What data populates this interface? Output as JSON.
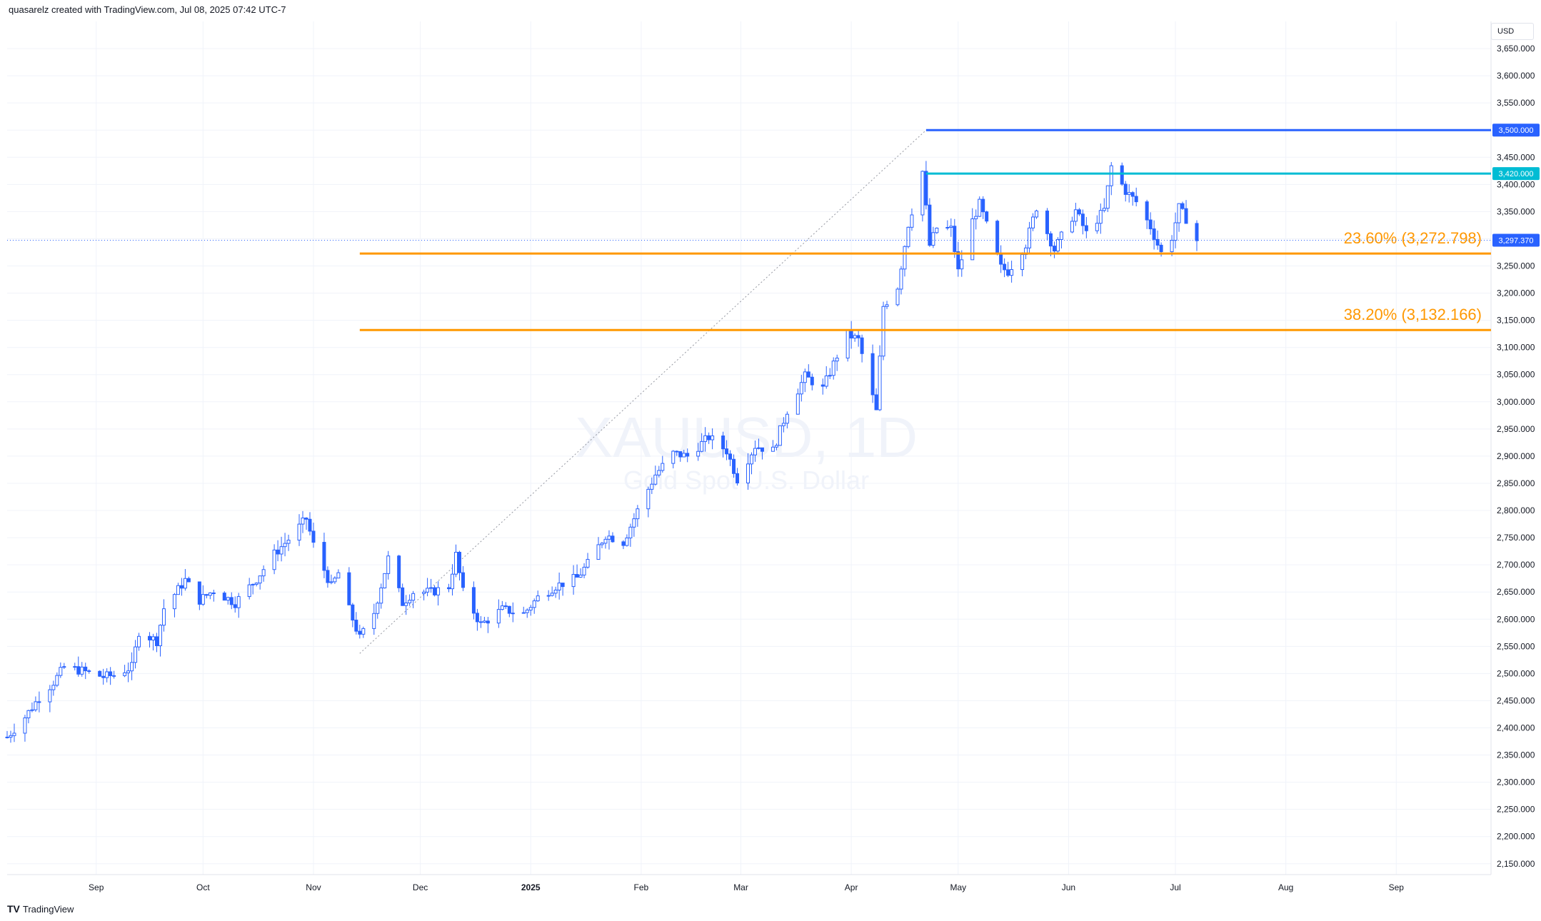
{
  "header": {
    "text": "quasarelz created with TradingView.com, Jul 08, 2025 07:42 UTC-7"
  },
  "footer": {
    "brand": "TradingView",
    "logo_glyph": "TV"
  },
  "currency": "USD",
  "watermark": {
    "symbol": "XAUUSD, 1D",
    "description": "Gold Spot U.S. Dollar"
  },
  "colors": {
    "up": "#2962ff",
    "down": "#2962ff",
    "up_fill": "#ffffff",
    "resistance": "#2962ff",
    "support_cyan": "#00bcd4",
    "fib": "#ff9800",
    "grid": "#f0f3fa",
    "text": "#131722"
  },
  "chart_data": {
    "type": "candlestick",
    "symbol": "XAUUSD",
    "interval": "1D",
    "ylim": [
      2130,
      3700
    ],
    "y_ticks": [
      2150,
      2200,
      2250,
      2300,
      2350,
      2400,
      2450,
      2500,
      2550,
      2600,
      2650,
      2700,
      2750,
      2800,
      2850,
      2900,
      2950,
      3000,
      3050,
      3100,
      3150,
      3200,
      3250,
      3300,
      3350,
      3400,
      3450,
      3500,
      3550,
      3600,
      3650
    ],
    "x_ticks": [
      {
        "label": "Sep",
        "x": "2024-09-01"
      },
      {
        "label": "Oct",
        "x": "2024-10-01"
      },
      {
        "label": "Nov",
        "x": "2024-11-01"
      },
      {
        "label": "Dec",
        "x": "2024-12-01"
      },
      {
        "label": "2025",
        "x": "2025-01-01",
        "bold": true
      },
      {
        "label": "Feb",
        "x": "2025-02-01"
      },
      {
        "label": "Mar",
        "x": "2025-03-01"
      },
      {
        "label": "Apr",
        "x": "2025-04-01"
      },
      {
        "label": "May",
        "x": "2025-05-01"
      },
      {
        "label": "Jun",
        "x": "2025-06-01"
      },
      {
        "label": "Jul",
        "x": "2025-07-01"
      },
      {
        "label": "Aug",
        "x": "2025-08-01"
      },
      {
        "label": "Sep",
        "x": "2025-09-01"
      }
    ],
    "x_range": [
      "2024-08-07",
      "2025-09-27"
    ],
    "close_path": [
      [
        "2024-08-07",
        2383
      ],
      [
        "2024-08-12",
        2420
      ],
      [
        "2024-08-16",
        2456
      ],
      [
        "2024-08-20",
        2484
      ],
      [
        "2024-08-23",
        2512
      ],
      [
        "2024-08-28",
        2505
      ],
      [
        "2024-09-03",
        2494
      ],
      [
        "2024-09-06",
        2497
      ],
      [
        "2024-09-11",
        2512
      ],
      [
        "2024-09-13",
        2577
      ],
      [
        "2024-09-18",
        2560
      ],
      [
        "2024-09-20",
        2620
      ],
      [
        "2024-09-26",
        2672
      ],
      [
        "2024-09-30",
        2635
      ],
      [
        "2024-10-04",
        2653
      ],
      [
        "2024-10-10",
        2630
      ],
      [
        "2024-10-16",
        2674
      ],
      [
        "2024-10-21",
        2720
      ],
      [
        "2024-10-25",
        2747
      ],
      [
        "2024-10-30",
        2785
      ],
      [
        "2024-11-01",
        2737
      ],
      [
        "2024-11-06",
        2660
      ],
      [
        "2024-11-08",
        2685
      ],
      [
        "2024-11-11",
        2618
      ],
      [
        "2024-11-14",
        2565
      ],
      [
        "2024-11-18",
        2612
      ],
      [
        "2024-11-22",
        2712
      ],
      [
        "2024-11-26",
        2630
      ],
      [
        "2024-11-29",
        2650
      ],
      [
        "2024-12-04",
        2650
      ],
      [
        "2024-12-09",
        2660
      ],
      [
        "2024-12-11",
        2718
      ],
      [
        "2024-12-13",
        2650
      ],
      [
        "2024-12-18",
        2590
      ],
      [
        "2024-12-24",
        2618
      ],
      [
        "2024-12-30",
        2610
      ],
      [
        "2025-01-03",
        2640
      ],
      [
        "2025-01-08",
        2661
      ],
      [
        "2025-01-14",
        2676
      ],
      [
        "2025-01-17",
        2702
      ],
      [
        "2025-01-22",
        2755
      ],
      [
        "2025-01-27",
        2742
      ],
      [
        "2025-01-31",
        2800
      ],
      [
        "2025-02-05",
        2866
      ],
      [
        "2025-02-10",
        2905
      ],
      [
        "2025-02-14",
        2900
      ],
      [
        "2025-02-20",
        2935
      ],
      [
        "2025-02-25",
        2910
      ],
      [
        "2025-02-28",
        2858
      ],
      [
        "2025-03-05",
        2919
      ],
      [
        "2025-03-10",
        2910
      ],
      [
        "2025-03-14",
        2984
      ],
      [
        "2025-03-19",
        3047
      ],
      [
        "2025-03-24",
        3024
      ],
      [
        "2025-03-28",
        3085
      ],
      [
        "2025-03-31",
        3124
      ],
      [
        "2025-04-03",
        3114
      ],
      [
        "2025-04-08",
        2982
      ],
      [
        "2025-04-10",
        3176
      ],
      [
        "2025-04-14",
        3212
      ],
      [
        "2025-04-17",
        3327
      ],
      [
        "2025-04-21",
        3424
      ],
      [
        "2025-04-23",
        3288
      ],
      [
        "2025-04-25",
        3320
      ],
      [
        "2025-04-29",
        3318
      ],
      [
        "2025-05-01",
        3240
      ],
      [
        "2025-05-05",
        3333
      ],
      [
        "2025-05-07",
        3364
      ],
      [
        "2025-05-09",
        3325
      ],
      [
        "2025-05-13",
        3247
      ],
      [
        "2025-05-15",
        3240
      ],
      [
        "2025-05-20",
        3290
      ],
      [
        "2025-05-23",
        3358
      ],
      [
        "2025-05-28",
        3280
      ],
      [
        "2025-06-03",
        3352
      ],
      [
        "2025-06-06",
        3310
      ],
      [
        "2025-06-11",
        3353
      ],
      [
        "2025-06-13",
        3433
      ],
      [
        "2025-06-17",
        3388
      ],
      [
        "2025-06-20",
        3368
      ],
      [
        "2025-06-24",
        3322
      ],
      [
        "2025-06-27",
        3274
      ],
      [
        "2025-06-30",
        3303
      ],
      [
        "2025-07-02",
        3357
      ],
      [
        "2025-07-04",
        3337
      ],
      [
        "2025-07-07",
        3297
      ]
    ],
    "last_price": {
      "label": "3,297.370",
      "value": 3297.37
    },
    "price_labels": [
      {
        "label": "3,500.000",
        "value": 3500,
        "color": "#2962ff"
      },
      {
        "label": "3,420.000",
        "value": 3420,
        "color": "#00bcd4"
      }
    ],
    "horizontal_lines": [
      {
        "name": "resistance-3500",
        "value": 3500,
        "from": "2025-04-22",
        "color": "#2962ff"
      },
      {
        "name": "resistance-3420",
        "value": 3420,
        "from": "2025-04-22",
        "color": "#00bcd4"
      }
    ],
    "fib_levels": [
      {
        "label": "23.60% (3,272.798)",
        "value": 3272.798,
        "from": "2024-11-14",
        "color": "#ff9800"
      },
      {
        "label": "38.20% (3,132.166)",
        "value": 3132.166,
        "from": "2024-11-14",
        "color": "#ff9800"
      }
    ],
    "trend_line": {
      "from": [
        "2024-11-14",
        2537
      ],
      "to": [
        "2025-04-22",
        3500
      ]
    }
  }
}
